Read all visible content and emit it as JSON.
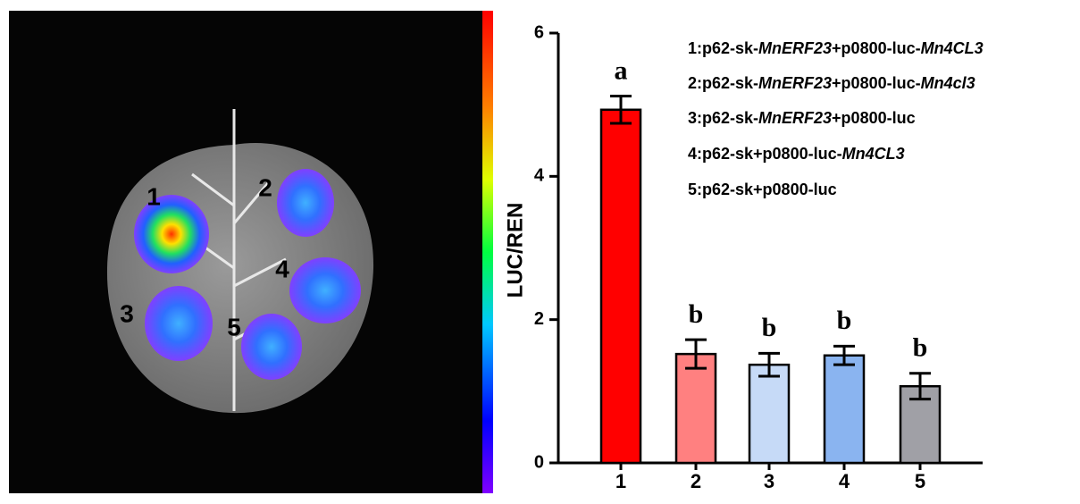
{
  "image": {
    "labels": [
      "1",
      "2",
      "3",
      "4",
      "5"
    ]
  },
  "chart_data": {
    "type": "bar",
    "ylabel": "LUC/REN",
    "categories": [
      "1",
      "2",
      "3",
      "4",
      "5"
    ],
    "values": [
      4.93,
      1.52,
      1.37,
      1.5,
      1.07
    ],
    "errors": [
      0.19,
      0.2,
      0.16,
      0.13,
      0.18
    ],
    "colors": [
      "#ff0000",
      "#ff8080",
      "#c6daf7",
      "#8ab4f0",
      "#a0a0a6"
    ],
    "annotations": [
      "a",
      "b",
      "b",
      "b",
      "b"
    ],
    "ylim": [
      0,
      6
    ],
    "yticks": [
      0,
      2,
      4,
      6
    ],
    "legend": [
      [
        {
          "text": "1:p62-sk-",
          "italic": false
        },
        {
          "text": "MnERF23",
          "italic": true
        },
        {
          "text": "+p0800-luc-",
          "italic": false
        },
        {
          "text": "Mn4CL3",
          "italic": true
        }
      ],
      [
        {
          "text": "2:p62-sk-",
          "italic": false
        },
        {
          "text": "MnERF23",
          "italic": true
        },
        {
          "text": "+p0800-luc-",
          "italic": false
        },
        {
          "text": "Mn4cl3",
          "italic": true
        }
      ],
      [
        {
          "text": "3:p62-sk-",
          "italic": false
        },
        {
          "text": "MnERF23",
          "italic": true
        },
        {
          "text": "+p0800-luc",
          "italic": false
        }
      ],
      [
        {
          "text": "4:p62-sk+p0800-luc-",
          "italic": false
        },
        {
          "text": "Mn4CL3",
          "italic": true
        }
      ],
      [
        {
          "text": "5:p62-sk+p0800-luc",
          "italic": false
        }
      ]
    ]
  }
}
